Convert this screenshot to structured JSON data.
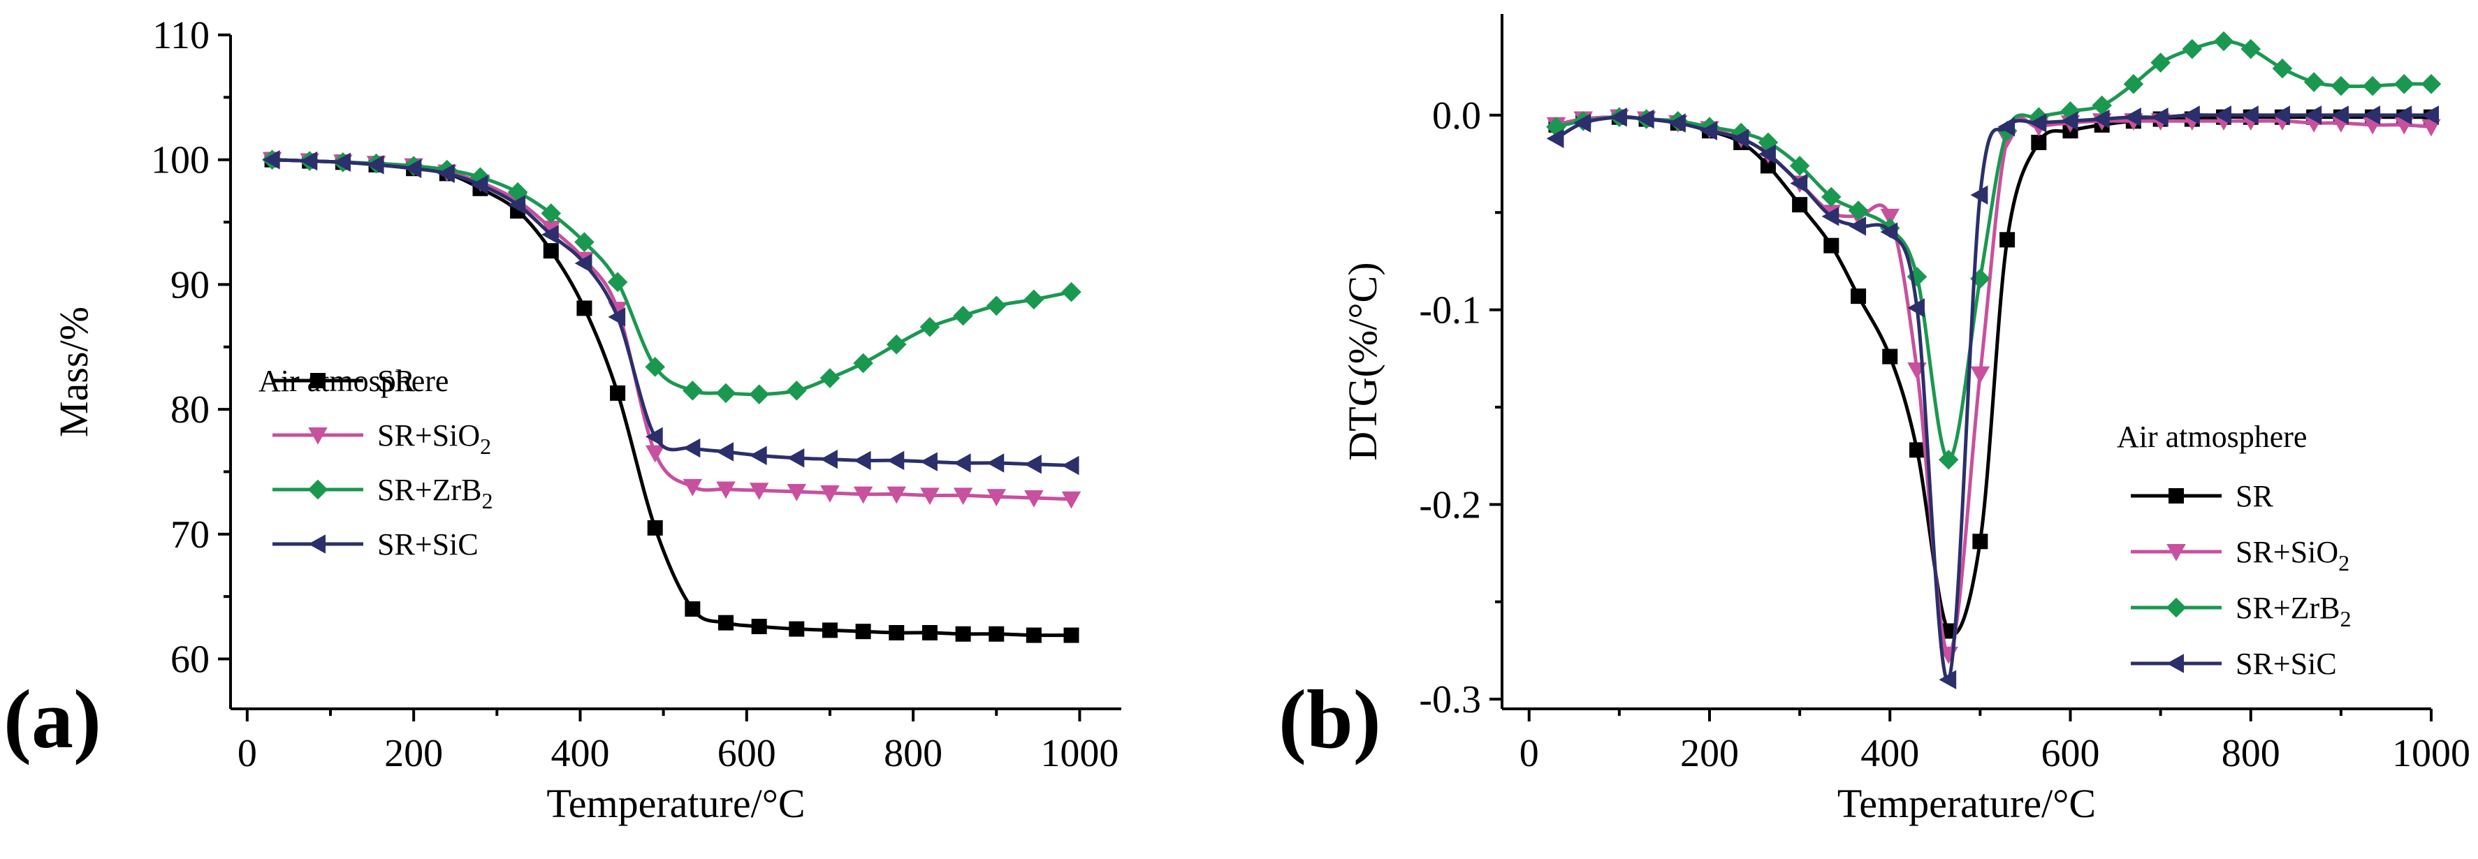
{
  "chart_data": [
    {
      "type": "line",
      "panel_label": "(a)",
      "title": "",
      "xlabel": "Temperature/°C",
      "ylabel": "Mass/%",
      "xlim": [
        -20,
        1050
      ],
      "ylim": [
        56,
        110
      ],
      "xticks": [
        0,
        200,
        400,
        600,
        800,
        1000
      ],
      "xtick_labels": [
        "0",
        "200",
        "400",
        "600",
        "800",
        "1000"
      ],
      "yticks": [
        60,
        70,
        80,
        90,
        100,
        110
      ],
      "ytick_labels": [
        "60",
        "70",
        "80",
        "90",
        "100",
        "110"
      ],
      "grid": false,
      "legend": {
        "title": "Air atmosphere",
        "position": "left-middle"
      },
      "series": [
        {
          "name": "SR",
          "name_main": "SR",
          "name_sub": "",
          "color": "#000000",
          "marker": "square",
          "x": [
            30,
            75,
            115,
            155,
            200,
            240,
            280,
            325,
            365,
            405,
            445,
            490,
            535,
            575,
            615,
            660,
            700,
            740,
            780,
            820,
            860,
            900,
            945,
            990
          ],
          "y": [
            100,
            99.9,
            99.8,
            99.6,
            99.3,
            98.9,
            97.7,
            95.9,
            92.7,
            88.1,
            81.3,
            70.5,
            64.0,
            62.9,
            62.6,
            62.4,
            62.3,
            62.2,
            62.1,
            62.1,
            62.0,
            62.0,
            61.9,
            61.9
          ]
        },
        {
          "name": "SR+SiO2",
          "name_main": "SR+SiO",
          "name_sub": "2",
          "color": "#c8509e",
          "marker": "triangle-down",
          "x": [
            30,
            75,
            115,
            155,
            200,
            240,
            280,
            325,
            365,
            405,
            445,
            490,
            535,
            575,
            615,
            660,
            700,
            740,
            780,
            820,
            860,
            900,
            945,
            990
          ],
          "y": [
            100,
            99.9,
            99.8,
            99.7,
            99.5,
            99.0,
            98.2,
            96.7,
            94.5,
            92.0,
            88.0,
            76.5,
            73.8,
            73.6,
            73.5,
            73.4,
            73.3,
            73.2,
            73.2,
            73.1,
            73.1,
            73.0,
            72.9,
            72.8
          ]
        },
        {
          "name": "SR+ZrB2",
          "name_main": "SR+ZrB",
          "name_sub": "2",
          "color": "#1a9850",
          "marker": "diamond",
          "x": [
            30,
            75,
            115,
            155,
            200,
            240,
            280,
            325,
            365,
            405,
            445,
            490,
            535,
            575,
            615,
            660,
            700,
            740,
            780,
            820,
            860,
            900,
            945,
            990
          ],
          "y": [
            100,
            99.9,
            99.8,
            99.7,
            99.5,
            99.2,
            98.6,
            97.4,
            95.7,
            93.4,
            90.2,
            83.4,
            81.5,
            81.3,
            81.2,
            81.5,
            82.5,
            83.7,
            85.2,
            86.6,
            87.5,
            88.3,
            88.8,
            89.4
          ]
        },
        {
          "name": "SR+SiC",
          "name_main": "SR+SiC",
          "name_sub": "",
          "color": "#2b2f6b",
          "marker": "triangle-left",
          "x": [
            30,
            75,
            115,
            155,
            200,
            240,
            280,
            325,
            365,
            405,
            445,
            490,
            535,
            575,
            615,
            660,
            700,
            740,
            780,
            820,
            860,
            900,
            945,
            990
          ],
          "y": [
            100,
            99.9,
            99.8,
            99.6,
            99.3,
            98.9,
            98.0,
            96.4,
            94.0,
            91.7,
            87.4,
            77.8,
            76.9,
            76.6,
            76.3,
            76.1,
            76.0,
            75.9,
            75.9,
            75.8,
            75.7,
            75.7,
            75.6,
            75.5
          ]
        }
      ]
    },
    {
      "type": "line",
      "panel_label": "(b)",
      "title": "",
      "xlabel": "Temperature/°C",
      "ylabel": "DTG(%/°C)",
      "xlim": [
        -30,
        1000
      ],
      "ylim": [
        -0.305,
        0.052
      ],
      "xticks": [
        0,
        200,
        400,
        600,
        800,
        1000
      ],
      "xtick_labels": [
        "0",
        "200",
        "400",
        "600",
        "800",
        "1000"
      ],
      "yticks": [
        -0.3,
        -0.2,
        -0.1,
        0.0
      ],
      "ytick_labels": [
        "-0.3",
        "-0.2",
        "-0.1",
        "0.0"
      ],
      "grid": false,
      "legend": {
        "title": "Air atmosphere",
        "position": "right-lower"
      },
      "series": [
        {
          "name": "SR",
          "name_main": "SR",
          "name_sub": "",
          "color": "#000000",
          "marker": "square",
          "x": [
            30,
            60,
            100,
            130,
            165,
            200,
            235,
            265,
            300,
            335,
            365,
            400,
            430,
            465,
            500,
            530,
            565,
            600,
            635,
            670,
            700,
            735,
            770,
            800,
            835,
            870,
            900,
            935,
            970,
            1000
          ],
          "y": [
            -0.005,
            -0.002,
            -0.001,
            -0.002,
            -0.004,
            -0.008,
            -0.014,
            -0.026,
            -0.046,
            -0.067,
            -0.093,
            -0.124,
            -0.172,
            -0.265,
            -0.219,
            -0.064,
            -0.014,
            -0.008,
            -0.005,
            -0.003,
            -0.002,
            -0.002,
            -0.001,
            -0.001,
            -0.001,
            -0.001,
            -0.001,
            -0.001,
            -0.001,
            -0.001
          ]
        },
        {
          "name": "SR+SiO2",
          "name_main": "SR+SiO",
          "name_sub": "2",
          "color": "#c8509e",
          "marker": "triangle-down",
          "x": [
            30,
            60,
            100,
            130,
            165,
            200,
            235,
            265,
            300,
            335,
            365,
            400,
            430,
            465,
            500,
            530,
            565,
            600,
            635,
            670,
            700,
            735,
            770,
            800,
            835,
            870,
            900,
            935,
            970,
            1000
          ],
          "y": [
            -0.005,
            -0.002,
            -0.001,
            -0.002,
            -0.004,
            -0.007,
            -0.012,
            -0.02,
            -0.035,
            -0.05,
            -0.052,
            -0.052,
            -0.131,
            -0.277,
            -0.133,
            -0.012,
            -0.006,
            -0.004,
            -0.003,
            -0.003,
            -0.003,
            -0.003,
            -0.003,
            -0.003,
            -0.003,
            -0.004,
            -0.004,
            -0.005,
            -0.005,
            -0.006
          ]
        },
        {
          "name": "SR+ZrB2",
          "name_main": "SR+ZrB",
          "name_sub": "2",
          "color": "#1a9850",
          "marker": "diamond",
          "x": [
            30,
            60,
            100,
            130,
            165,
            200,
            235,
            265,
            300,
            335,
            365,
            400,
            430,
            465,
            500,
            530,
            565,
            600,
            635,
            670,
            700,
            735,
            770,
            800,
            835,
            870,
            900,
            935,
            970,
            1000
          ],
          "y": [
            -0.006,
            -0.003,
            -0.001,
            -0.002,
            -0.003,
            -0.006,
            -0.009,
            -0.014,
            -0.026,
            -0.042,
            -0.049,
            -0.058,
            -0.083,
            -0.177,
            -0.084,
            -0.008,
            -0.001,
            0.002,
            0.005,
            0.016,
            0.027,
            0.034,
            0.038,
            0.034,
            0.024,
            0.017,
            0.015,
            0.015,
            0.016,
            0.016
          ]
        },
        {
          "name": "SR+SiC",
          "name_main": "SR+SiC",
          "name_sub": "",
          "color": "#2b2f6b",
          "marker": "triangle-left",
          "x": [
            30,
            60,
            100,
            130,
            165,
            200,
            235,
            265,
            300,
            335,
            365,
            400,
            430,
            465,
            500,
            530,
            565,
            600,
            635,
            670,
            700,
            735,
            770,
            800,
            835,
            870,
            900,
            935,
            970,
            1000
          ],
          "y": [
            -0.012,
            -0.004,
            -0.001,
            -0.002,
            -0.004,
            -0.008,
            -0.012,
            -0.02,
            -0.035,
            -0.052,
            -0.057,
            -0.06,
            -0.099,
            -0.29,
            -0.041,
            -0.006,
            -0.004,
            -0.003,
            -0.002,
            -0.001,
            -0.001,
            0.0,
            0.0,
            0.0,
            0.0,
            0.0,
            0.0,
            0.0,
            0.0,
            0.0
          ]
        }
      ]
    }
  ]
}
